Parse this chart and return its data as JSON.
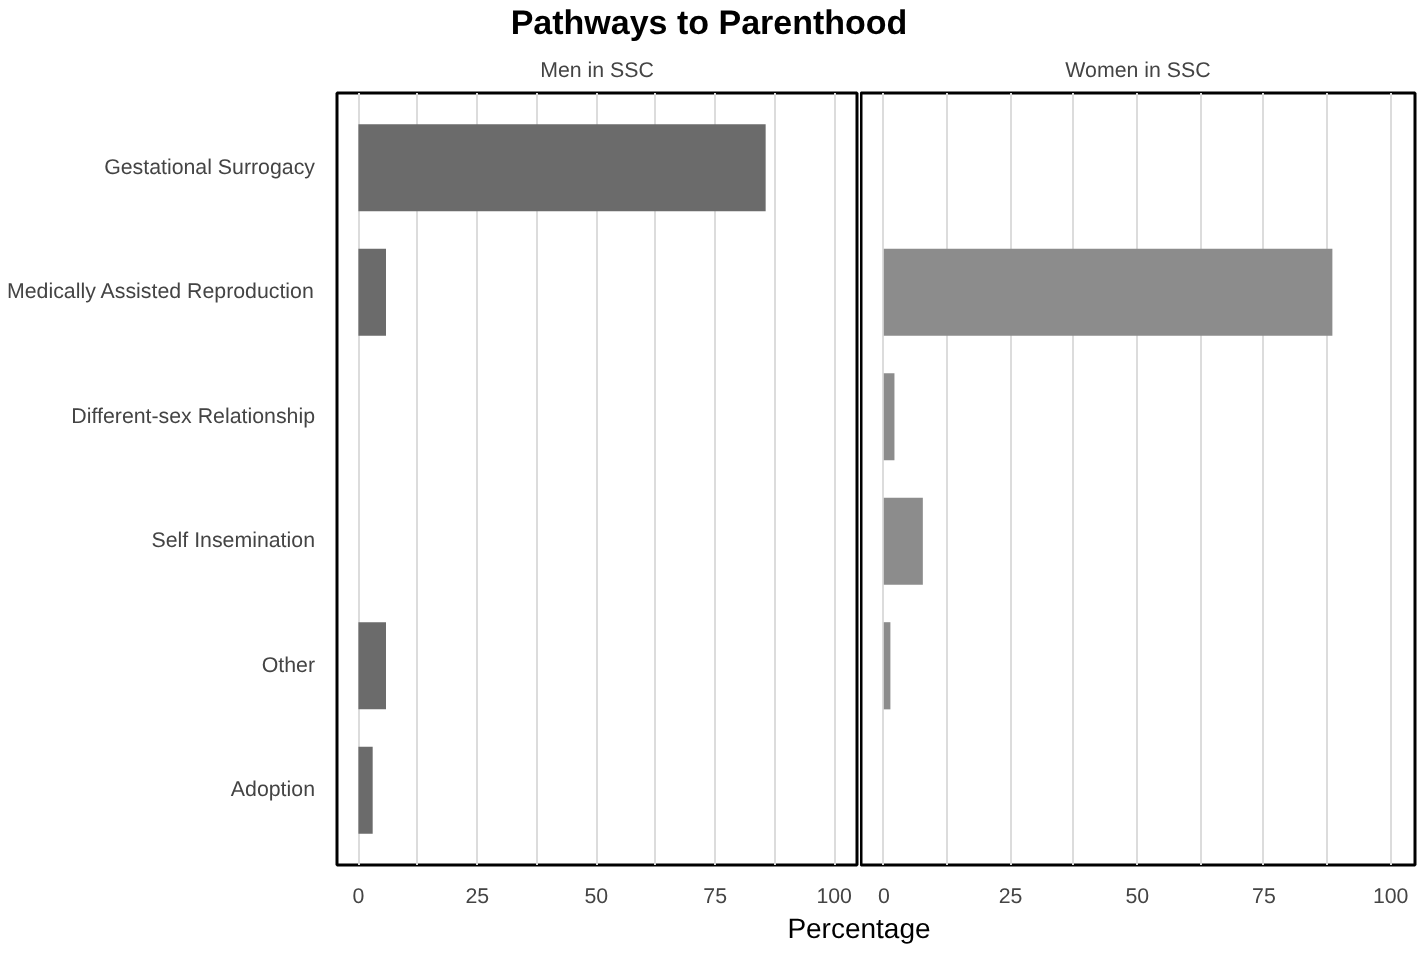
{
  "chart_data": [
    {
      "type": "bar",
      "orientation": "horizontal",
      "title": "Pathways to Parenthood",
      "subtitle": "Men in SSC",
      "xlabel": "Percentage",
      "categories": [
        "Gestational Surrogacy",
        "Medically Assisted Reproduction",
        "Different-sex Relationship",
        "Self Insemination",
        "Other",
        "Adoption"
      ],
      "values": [
        85.6,
        5.8,
        0,
        0,
        5.8,
        3.0
      ],
      "color": "#6b6b6b",
      "xlim": [
        -4.5,
        104.8
      ],
      "xticks": [
        0,
        {
          "value": 12.5,
          "label": null
        },
        25,
        {
          "value": 37.5,
          "label": null
        },
        50,
        {
          "value": 62.5,
          "label": null
        },
        75,
        {
          "value": 87.5,
          "label": null
        },
        100
      ],
      "grid": "x"
    },
    {
      "type": "bar",
      "orientation": "horizontal",
      "subtitle": "Women in SSC",
      "values": [
        0,
        88.5,
        2.1,
        7.7,
        1.3,
        0
      ],
      "color": "#8c8c8c",
      "xlim": [
        -4.5,
        104.8
      ],
      "xticks": [
        0,
        {
          "value": 12.5,
          "label": null
        },
        25,
        {
          "value": 37.5,
          "label": null
        },
        50,
        {
          "value": 62.5,
          "label": null
        },
        75,
        {
          "value": 87.5,
          "label": null
        },
        100
      ],
      "grid": "x",
      "tick_labels": "x"
    }
  ]
}
